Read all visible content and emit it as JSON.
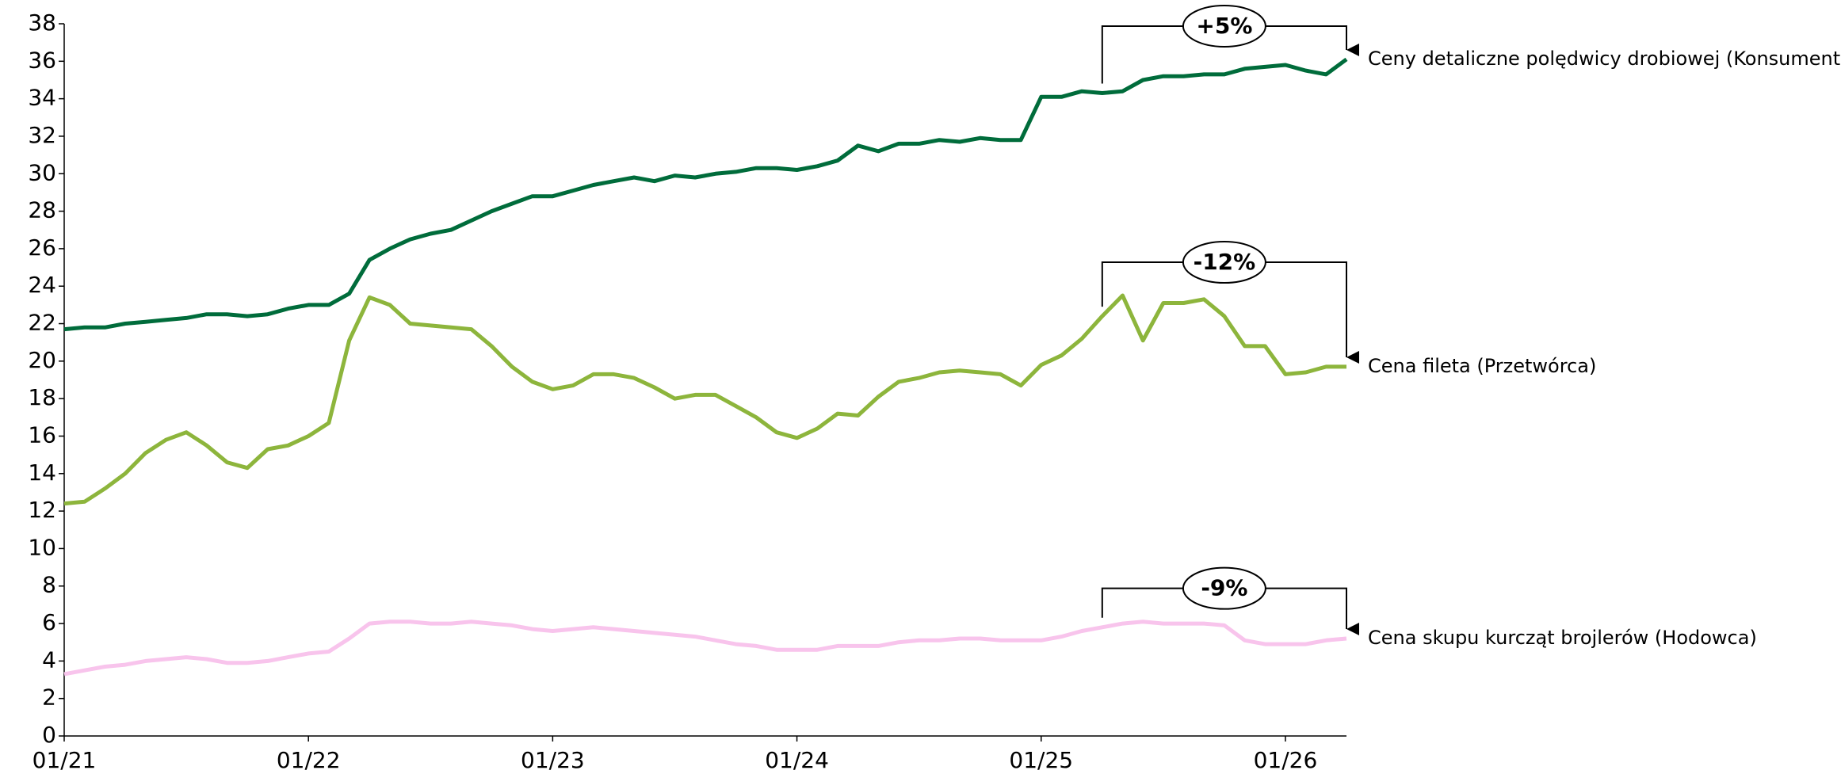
{
  "chart_data": {
    "type": "line",
    "categories": [
      "01/21",
      null,
      null,
      null,
      null,
      null,
      null,
      null,
      null,
      null,
      null,
      null,
      "01/22",
      null,
      null,
      null,
      null,
      null,
      null,
      null,
      null,
      null,
      null,
      null,
      "01/23",
      null,
      null,
      null,
      null,
      null,
      null,
      null,
      null,
      null,
      null,
      null,
      "01/24",
      null,
      null,
      null,
      null,
      null,
      null,
      null,
      null,
      null,
      null,
      null,
      "01/25",
      null,
      null,
      null,
      null,
      null,
      null,
      null,
      null,
      null,
      null,
      null,
      "01/26",
      null,
      null,
      null
    ],
    "ylim": [
      0,
      38
    ],
    "yticks": [
      0,
      2,
      4,
      6,
      8,
      10,
      12,
      14,
      16,
      18,
      20,
      22,
      24,
      26,
      28,
      30,
      32,
      34,
      36,
      38
    ],
    "grid": false,
    "series": [
      {
        "name": "Ceny detaliczne polędwicy drobiowej (Konsument)",
        "color": "#006c3b",
        "change_label": "+5%",
        "values": [
          21.7,
          21.8,
          21.8,
          22.0,
          22.1,
          22.2,
          22.3,
          22.5,
          22.5,
          22.4,
          22.5,
          22.8,
          23.0,
          23.0,
          23.6,
          25.4,
          26.0,
          26.5,
          26.8,
          27.0,
          27.5,
          28.0,
          28.4,
          28.8,
          28.8,
          29.1,
          29.4,
          29.6,
          29.8,
          29.6,
          29.9,
          29.8,
          30.0,
          30.1,
          30.3,
          30.3,
          30.2,
          30.4,
          30.7,
          31.5,
          31.2,
          31.6,
          31.6,
          31.8,
          31.7,
          31.9,
          31.8,
          31.8,
          34.1,
          34.1,
          34.4,
          34.3,
          34.4,
          35.0,
          35.2,
          35.2,
          35.3,
          35.3,
          35.6,
          35.7,
          35.8,
          35.5,
          35.3,
          36.1
        ]
      },
      {
        "name": "Cena fileta (Przetwórca)",
        "color": "#8db53c",
        "change_label": "-12%",
        "values": [
          12.4,
          12.5,
          13.2,
          14.0,
          15.1,
          15.8,
          16.2,
          15.5,
          14.6,
          14.3,
          15.3,
          15.5,
          16.0,
          16.7,
          21.1,
          23.4,
          23.0,
          22.0,
          21.9,
          21.8,
          21.7,
          20.8,
          19.7,
          18.9,
          18.5,
          18.7,
          19.3,
          19.3,
          19.1,
          18.6,
          18.0,
          18.2,
          18.2,
          17.6,
          17.0,
          16.2,
          15.9,
          16.4,
          17.2,
          17.1,
          18.1,
          18.9,
          19.1,
          19.4,
          19.5,
          19.4,
          19.3,
          18.7,
          19.8,
          20.3,
          21.2,
          22.4,
          23.5,
          21.1,
          23.1,
          23.1,
          23.3,
          22.4,
          20.8,
          20.8,
          19.3,
          19.4,
          19.7,
          19.7
        ]
      },
      {
        "name": "Cena skupu kurcząt brojlerów (Hodowca)",
        "color": "#f8c4ec",
        "change_label": "-9%",
        "values": [
          3.3,
          3.5,
          3.7,
          3.8,
          4.0,
          4.1,
          4.2,
          4.1,
          3.9,
          3.9,
          4.0,
          4.2,
          4.4,
          4.5,
          5.2,
          6.0,
          6.1,
          6.1,
          6.0,
          6.0,
          6.1,
          6.0,
          5.9,
          5.7,
          5.6,
          5.7,
          5.8,
          5.7,
          5.6,
          5.5,
          5.4,
          5.3,
          5.1,
          4.9,
          4.8,
          4.6,
          4.6,
          4.6,
          4.8,
          4.8,
          4.8,
          5.0,
          5.1,
          5.1,
          5.2,
          5.2,
          5.1,
          5.1,
          5.1,
          5.3,
          5.6,
          5.8,
          6.0,
          6.1,
          6.0,
          6.0,
          6.0,
          5.9,
          5.1,
          4.9,
          4.9,
          4.9,
          5.1,
          5.2
        ]
      }
    ]
  }
}
